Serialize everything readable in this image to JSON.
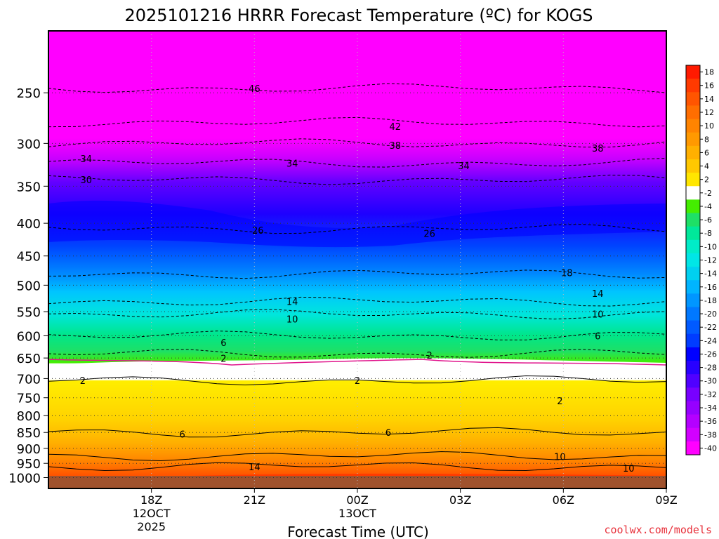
{
  "chart_data": {
    "type": "heatmap",
    "title": "2025101216 HRRR Forecast Temperature (ºC) for KOGS",
    "xlabel": "Forecast Time (UTC)",
    "ylabel": "",
    "credit": "coolwx.com/models",
    "y_axis": {
      "scale": "log-pressure",
      "range": [
        1040,
        200
      ],
      "ticks": [
        "250",
        "300",
        "350",
        "400",
        "450",
        "500",
        "550",
        "600",
        "650",
        "700",
        "750",
        "800",
        "850",
        "900",
        "950",
        "1000"
      ]
    },
    "x_axis": {
      "range_hours": [
        -1,
        17
      ],
      "ticks": [
        {
          "hour": 2,
          "line1": "18Z",
          "line2": "12OCT",
          "line3": "2025"
        },
        {
          "hour": 5,
          "line1": "21Z",
          "line2": "",
          "line3": ""
        },
        {
          "hour": 8,
          "line1": "00Z",
          "line2": "13OCT",
          "line3": ""
        },
        {
          "hour": 11,
          "line1": "03Z",
          "line2": "",
          "line3": ""
        },
        {
          "hour": 14,
          "line1": "06Z",
          "line2": "",
          "line3": ""
        },
        {
          "hour": 17,
          "line1": "09Z",
          "line2": "",
          "line3": ""
        }
      ]
    },
    "isotherms": [
      {
        "value": -46,
        "pressure": 246
      },
      {
        "value": -42,
        "pressure": 278
      },
      {
        "value": -38,
        "pressure": 300
      },
      {
        "value": -34,
        "pressure": 322
      },
      {
        "value": -30,
        "pressure": 342
      },
      {
        "value": -26,
        "pressure": 408
      },
      {
        "value": -18,
        "pressure": 480
      },
      {
        "value": -14,
        "pressure": 530
      },
      {
        "value": -10,
        "pressure": 555
      },
      {
        "value": -6,
        "pressure": 600
      },
      {
        "value": -2,
        "pressure": 640
      },
      {
        "value": 2,
        "pressure": 705
      },
      {
        "value": 6,
        "pressure": 850
      },
      {
        "value": 10,
        "pressure": 925
      },
      {
        "value": 14,
        "pressure": 960
      }
    ],
    "contour_labels": [
      {
        "text": "46",
        "hour": 5.0,
        "pressure": 246
      },
      {
        "text": "42",
        "hour": 9.1,
        "pressure": 282
      },
      {
        "text": "38",
        "hour": 9.1,
        "pressure": 302
      },
      {
        "text": "38",
        "hour": 15.0,
        "pressure": 305
      },
      {
        "text": "34",
        "hour": 0.1,
        "pressure": 317
      },
      {
        "text": "34",
        "hour": 6.1,
        "pressure": 322
      },
      {
        "text": "34",
        "hour": 11.1,
        "pressure": 325
      },
      {
        "text": "30",
        "hour": 0.1,
        "pressure": 342
      },
      {
        "text": "26",
        "hour": 5.1,
        "pressure": 410
      },
      {
        "text": "26",
        "hour": 10.1,
        "pressure": 415
      },
      {
        "text": "18",
        "hour": 14.1,
        "pressure": 478
      },
      {
        "text": "14",
        "hour": 6.1,
        "pressure": 530
      },
      {
        "text": "14",
        "hour": 15.0,
        "pressure": 515
      },
      {
        "text": "10",
        "hour": 6.1,
        "pressure": 565
      },
      {
        "text": "10",
        "hour": 15.0,
        "pressure": 555
      },
      {
        "text": "6",
        "hour": 4.1,
        "pressure": 615
      },
      {
        "text": "6",
        "hour": 15.0,
        "pressure": 600
      },
      {
        "text": "2",
        "hour": 4.1,
        "pressure": 651
      },
      {
        "text": "2",
        "hour": 10.1,
        "pressure": 643
      },
      {
        "text": "2",
        "hour": 0.0,
        "pressure": 705
      },
      {
        "text": "2",
        "hour": 8.0,
        "pressure": 705
      },
      {
        "text": "2",
        "hour": 13.9,
        "pressure": 758
      },
      {
        "text": "6",
        "hour": 2.9,
        "pressure": 855
      },
      {
        "text": "6",
        "hour": 8.9,
        "pressure": 850
      },
      {
        "text": "10",
        "hour": 13.9,
        "pressure": 927
      },
      {
        "text": "10",
        "hour": 15.9,
        "pressure": 966
      },
      {
        "text": "14",
        "hour": 5.0,
        "pressure": 962
      }
    ],
    "colorbar": {
      "labels": [
        "18",
        "16",
        "14",
        "12",
        "10",
        "8",
        "6",
        "4",
        "2",
        "-2",
        "-4",
        "-6",
        "-8",
        "-10",
        "-12",
        "-14",
        "-16",
        "-18",
        "-20",
        "-22",
        "-24",
        "-26",
        "-28",
        "-30",
        "-32",
        "-34",
        "-36",
        "-38",
        "-40"
      ],
      "colors": [
        "#ff1a00",
        "#ff3a00",
        "#ff5500",
        "#ff6e00",
        "#ff8400",
        "#ff9900",
        "#ffb000",
        "#ffc800",
        "#ffe600",
        "#ffffff",
        "#44ee00",
        "#1ee066",
        "#00e89a",
        "#00ecc8",
        "#00e6e6",
        "#00d0f0",
        "#00b4ff",
        "#0096ff",
        "#0078ff",
        "#005aff",
        "#003cff",
        "#0000ff",
        "#2800ff",
        "#5000ff",
        "#7800ff",
        "#9600ff",
        "#b400ff",
        "#d200ff",
        "#ff00ff"
      ]
    }
  }
}
